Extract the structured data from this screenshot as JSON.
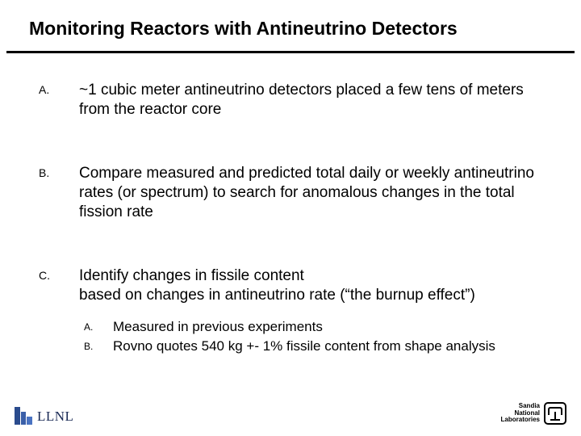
{
  "title": "Monitoring Reactors with Antineutrino Detectors",
  "items": [
    {
      "marker": "A.",
      "text": "~1 cubic meter  antineutrino detectors placed a few tens of meters from the reactor core"
    },
    {
      "marker": "B.",
      "text": "Compare measured and predicted total daily or weekly antineutrino rates (or spectrum) to search for anomalous changes in the total fission rate"
    },
    {
      "marker": "C.",
      "text": "Identify changes in fissile content\nbased on changes in antineutrino rate (“the burnup effect”)"
    }
  ],
  "subitems": [
    {
      "marker": "A.",
      "text": "Measured in previous experiments"
    },
    {
      "marker": "B.",
      "text": "Rovno quotes 540 kg +- 1% fissile content from shape analysis"
    }
  ],
  "footer": {
    "llnl": "LLNL",
    "sandia_line1": "Sandia",
    "sandia_line2": "National",
    "sandia_line3": "Laboratories"
  },
  "colors": {
    "text": "#000000",
    "background": "#ffffff",
    "llnl_text": "#1a2a55"
  }
}
